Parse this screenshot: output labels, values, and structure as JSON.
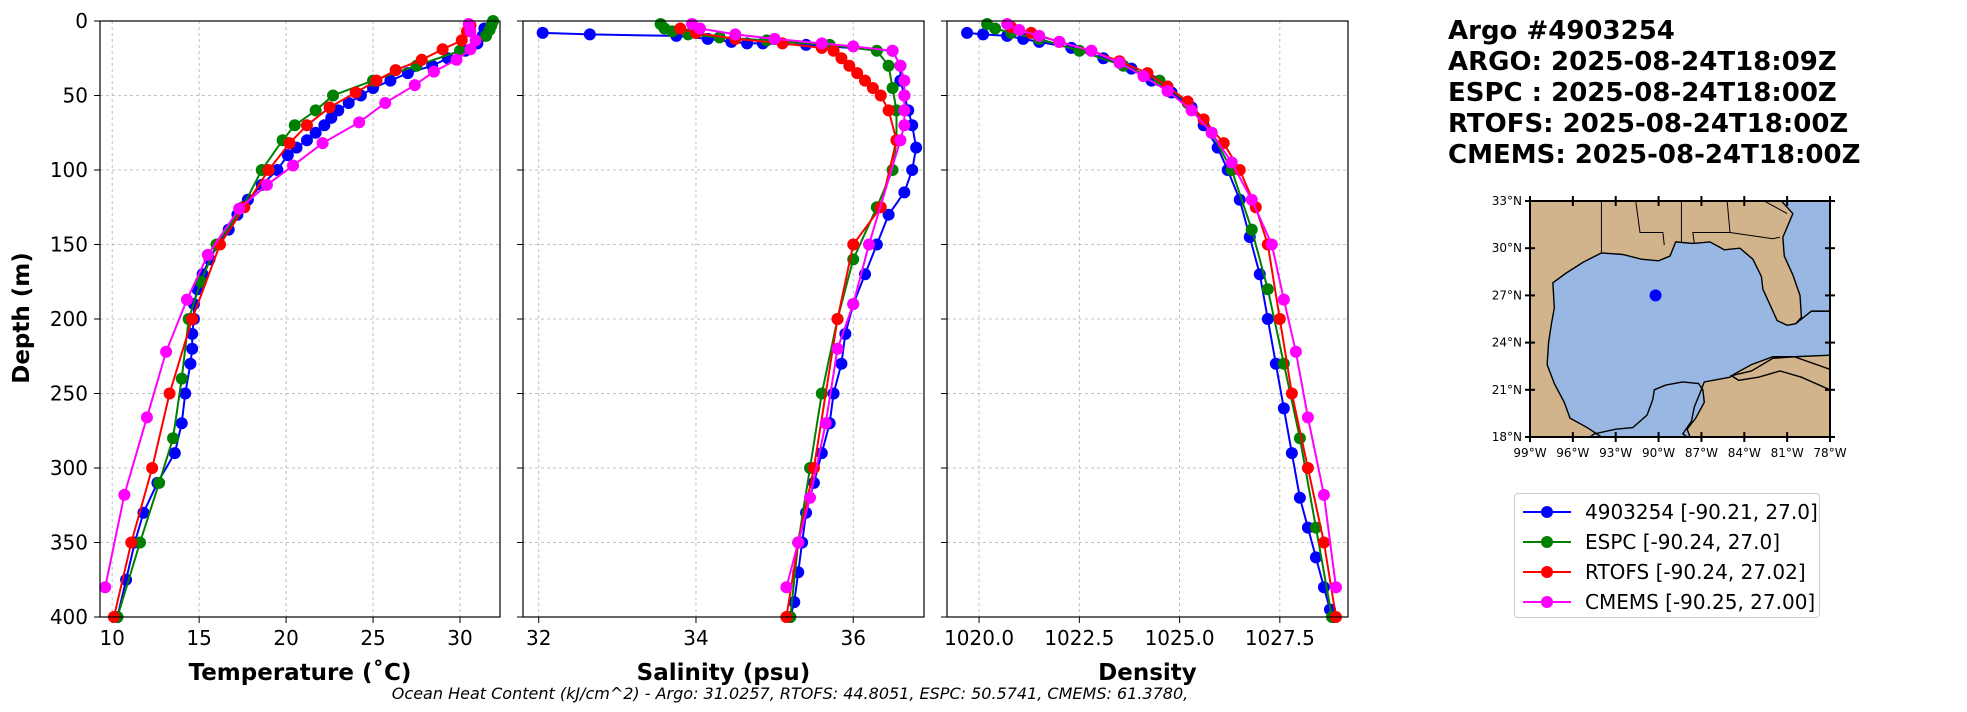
{
  "header": {
    "float_id": "Argo #4903254",
    "argo_time": "ARGO: 2025-08-24T18:09Z",
    "espc_time": "ESPC : 2025-08-24T18:00Z",
    "rtofs_time": "RTOFS: 2025-08-24T18:00Z",
    "cmems_time": "CMEMS: 2025-08-24T18:00Z"
  },
  "footer": "Ocean Heat Content (kJ/cm^2) - Argo: 31.0257,  RTOFS: 44.8051,  ESPC: 50.5741,  CMEMS: 61.3780,",
  "legend": [
    {
      "label": "4903254 [-90.21, 27.0]",
      "color": "#0000ff"
    },
    {
      "label": "ESPC [-90.24, 27.0]",
      "color": "#008000"
    },
    {
      "label": "RTOFS [-90.24, 27.02]",
      "color": "#ff0000"
    },
    {
      "label": "CMEMS [-90.25, 27.00]",
      "color": "#ff00ff"
    }
  ],
  "map": {
    "lat_labels": [
      "33°N",
      "30°N",
      "27°N",
      "24°N",
      "21°N",
      "18°N"
    ],
    "lon_labels": [
      "99°W",
      "96°W",
      "93°W",
      "90°W",
      "87°W",
      "84°W",
      "81°W",
      "78°W"
    ],
    "lon_range": [
      -99,
      -78
    ],
    "lat_range": [
      18,
      33
    ],
    "float_position": {
      "lon": -90.21,
      "lat": 27.0
    },
    "land_color": "#d2b48c",
    "ocean_color": "#98b7e3",
    "marker_color": "#0000ff"
  },
  "chart_data": [
    {
      "type": "line",
      "xlabel": "Temperature (˚C)",
      "ylabel": "Depth (m)",
      "xlim": [
        9.3,
        32.3
      ],
      "ylim": [
        400,
        0
      ],
      "xticks": [
        "10",
        "15",
        "20",
        "25",
        "30"
      ],
      "xtick_values": [
        10,
        15,
        20,
        25,
        30
      ],
      "yticks": [
        "0",
        "50",
        "100",
        "150",
        "200",
        "250",
        "300",
        "350",
        "400"
      ],
      "ytick_values": [
        0,
        50,
        100,
        150,
        200,
        250,
        300,
        350,
        400
      ],
      "grid": true,
      "series": [
        {
          "name": "4903254 [-90.21, 27.0]",
          "color": "#0000ff",
          "x": [
            31.4,
            31.3,
            31.0,
            30.3,
            29.3,
            28.4,
            27.0,
            26.0,
            25.0,
            24.3,
            23.6,
            23.0,
            22.6,
            22.2,
            21.7,
            21.2,
            20.6,
            20.1,
            19.5,
            18.6,
            17.8,
            17.2,
            16.7,
            16.1,
            15.6,
            15.2,
            14.9,
            14.7,
            14.7,
            14.6,
            14.6,
            14.5,
            14.2,
            14.0,
            13.6,
            12.6,
            11.8,
            11.3,
            10.8,
            10.3
          ],
          "y": [
            5,
            10,
            15,
            20,
            25,
            30,
            35,
            40,
            45,
            50,
            55,
            60,
            65,
            70,
            75,
            80,
            85,
            90,
            100,
            110,
            120,
            130,
            140,
            150,
            160,
            170,
            180,
            190,
            200,
            210,
            220,
            230,
            250,
            270,
            290,
            310,
            330,
            350,
            375,
            400
          ]
        },
        {
          "name": "ESPC [-90.24, 27.0]",
          "color": "#008000",
          "x": [
            31.9,
            31.8,
            31.7,
            31.5,
            30.0,
            27.5,
            25.0,
            22.7,
            21.7,
            20.5,
            19.8,
            18.6,
            17.5,
            16.0,
            15.1,
            14.4,
            14.0,
            13.5,
            12.7,
            11.6,
            10.3
          ],
          "y": [
            0,
            3,
            6,
            10,
            20,
            30,
            40,
            50,
            60,
            70,
            80,
            100,
            125,
            150,
            175,
            200,
            240,
            280,
            310,
            350,
            400
          ]
        },
        {
          "name": "RTOFS [-90.24, 27.02]",
          "color": "#ff0000",
          "x": [
            30.6,
            30.4,
            30.1,
            29.0,
            27.8,
            26.3,
            25.2,
            24.0,
            22.5,
            21.2,
            20.2,
            19.0,
            17.6,
            16.2,
            14.6,
            13.3,
            12.3,
            11.1,
            10.1
          ],
          "y": [
            3,
            7,
            13,
            19,
            26,
            33,
            40,
            48,
            58,
            70,
            82,
            100,
            125,
            150,
            200,
            250,
            300,
            350,
            400
          ]
        },
        {
          "name": "CMEMS [-90.25, 27.00]",
          "color": "#ff00ff",
          "x": [
            30.5,
            30.6,
            30.9,
            30.6,
            29.8,
            28.5,
            27.4,
            25.7,
            24.2,
            22.1,
            20.4,
            18.9,
            17.3,
            15.5,
            14.3,
            13.1,
            12.0,
            10.7,
            9.6
          ],
          "y": [
            2,
            7,
            13,
            19,
            26,
            34,
            43,
            55,
            68,
            82,
            97,
            110,
            126,
            157,
            187,
            222,
            266,
            318,
            380
          ]
        }
      ]
    },
    {
      "type": "line",
      "xlabel": "Salinity (psu)",
      "ylabel": "",
      "xlim": [
        31.8,
        36.9
      ],
      "ylim": [
        400,
        0
      ],
      "xticks": [
        "32",
        "34",
        "36"
      ],
      "xtick_values": [
        32,
        34,
        36
      ],
      "yticks": [],
      "grid": true,
      "series": [
        {
          "name": "4903254 [-90.21, 27.0]",
          "color": "#0000ff",
          "x": [
            32.05,
            32.65,
            33.75,
            34.15,
            34.45,
            34.65,
            34.85,
            35.4,
            36.5,
            36.6,
            36.6,
            36.65,
            36.7,
            36.75,
            36.8,
            36.75,
            36.65,
            36.45,
            36.3,
            36.15,
            36.0,
            35.9,
            35.85,
            35.75,
            35.7,
            35.6,
            35.5,
            35.4,
            35.35,
            35.3,
            35.25,
            35.2
          ],
          "y": [
            8,
            9,
            10,
            12,
            14,
            15,
            15,
            16,
            20,
            30,
            40,
            50,
            60,
            70,
            85,
            100,
            115,
            130,
            150,
            170,
            190,
            210,
            230,
            250,
            270,
            290,
            310,
            330,
            350,
            370,
            390,
            400
          ]
        },
        {
          "name": "ESPC [-90.24, 27.0]",
          "color": "#008000",
          "x": [
            33.55,
            33.6,
            33.7,
            33.9,
            34.3,
            34.9,
            35.7,
            36.3,
            36.45,
            36.5,
            36.55,
            36.55,
            36.5,
            36.3,
            36.0,
            35.8,
            35.6,
            35.45,
            35.3,
            35.2
          ],
          "y": [
            2,
            5,
            7,
            9,
            11,
            13,
            16,
            20,
            30,
            45,
            60,
            80,
            100,
            125,
            160,
            200,
            250,
            300,
            350,
            400
          ]
        },
        {
          "name": "RTOFS [-90.24, 27.02]",
          "color": "#ff0000",
          "x": [
            33.8,
            34.0,
            34.5,
            35.1,
            35.6,
            35.75,
            35.85,
            35.95,
            36.05,
            36.15,
            36.25,
            36.35,
            36.45,
            36.55,
            36.35,
            36.0,
            35.8,
            35.5,
            35.3,
            35.15
          ],
          "y": [
            5,
            8,
            12,
            15,
            18,
            20,
            25,
            30,
            35,
            40,
            45,
            50,
            60,
            80,
            125,
            150,
            200,
            300,
            350,
            400
          ]
        },
        {
          "name": "CMEMS [-90.25, 27.00]",
          "color": "#ff00ff",
          "x": [
            33.95,
            34.05,
            34.5,
            35.0,
            35.6,
            36.0,
            36.5,
            36.6,
            36.65,
            36.65,
            36.65,
            36.65,
            36.6,
            36.2,
            36.0,
            35.8,
            35.65,
            35.45,
            35.3,
            35.15
          ],
          "y": [
            2,
            5,
            9,
            12,
            15,
            17,
            20,
            30,
            40,
            50,
            60,
            70,
            80,
            150,
            190,
            220,
            270,
            320,
            350,
            380
          ]
        }
      ]
    },
    {
      "type": "line",
      "xlabel": "Density",
      "ylabel": "",
      "xlim": [
        1019.2,
        1029.2
      ],
      "ylim": [
        400,
        0
      ],
      "xticks": [
        "1020.0",
        "1022.5",
        "1025.0",
        "1027.5"
      ],
      "xtick_values": [
        1020.0,
        1022.5,
        1025.0,
        1027.5
      ],
      "yticks": [],
      "grid": true,
      "series": [
        {
          "name": "4903254 [-90.21, 27.0]",
          "color": "#0000ff",
          "x": [
            1019.7,
            1020.1,
            1020.7,
            1021.1,
            1021.5,
            1022.3,
            1023.1,
            1023.8,
            1024.3,
            1024.8,
            1025.3,
            1025.6,
            1025.95,
            1026.2,
            1026.5,
            1026.75,
            1027.0,
            1027.2,
            1027.4,
            1027.6,
            1027.8,
            1028.0,
            1028.2,
            1028.4,
            1028.6,
            1028.75,
            1028.85
          ],
          "y": [
            8,
            9,
            10,
            12,
            14,
            18,
            25,
            32,
            40,
            48,
            58,
            70,
            85,
            100,
            120,
            145,
            170,
            200,
            230,
            260,
            290,
            320,
            340,
            360,
            380,
            395,
            400
          ]
        },
        {
          "name": "ESPC [-90.24, 27.0]",
          "color": "#008000",
          "x": [
            1020.2,
            1020.4,
            1020.8,
            1021.5,
            1022.5,
            1023.6,
            1024.5,
            1025.2,
            1025.8,
            1026.3,
            1026.8,
            1027.2,
            1027.6,
            1028.0,
            1028.4,
            1028.8
          ],
          "y": [
            2,
            5,
            8,
            12,
            20,
            30,
            40,
            55,
            75,
            100,
            140,
            180,
            230,
            280,
            340,
            400
          ]
        },
        {
          "name": "RTOFS [-90.24, 27.02]",
          "color": "#ff0000",
          "x": [
            1020.8,
            1021.3,
            1022.0,
            1022.8,
            1023.5,
            1024.2,
            1024.7,
            1025.2,
            1025.6,
            1026.1,
            1026.5,
            1026.9,
            1027.2,
            1027.5,
            1027.8,
            1028.2,
            1028.6,
            1028.9
          ],
          "y": [
            4,
            8,
            14,
            20,
            27,
            35,
            44,
            54,
            66,
            82,
            100,
            125,
            150,
            200,
            250,
            300,
            350,
            400
          ]
        },
        {
          "name": "CMEMS [-90.25, 27.00]",
          "color": "#ff00ff",
          "x": [
            1020.7,
            1021.0,
            1021.5,
            1022.0,
            1022.8,
            1023.5,
            1024.1,
            1024.7,
            1025.3,
            1025.8,
            1026.3,
            1026.8,
            1027.3,
            1027.6,
            1027.9,
            1028.2,
            1028.6,
            1028.9
          ],
          "y": [
            2,
            6,
            10,
            14,
            20,
            28,
            37,
            47,
            60,
            75,
            95,
            120,
            150,
            187,
            222,
            266,
            318,
            380
          ]
        }
      ]
    }
  ]
}
